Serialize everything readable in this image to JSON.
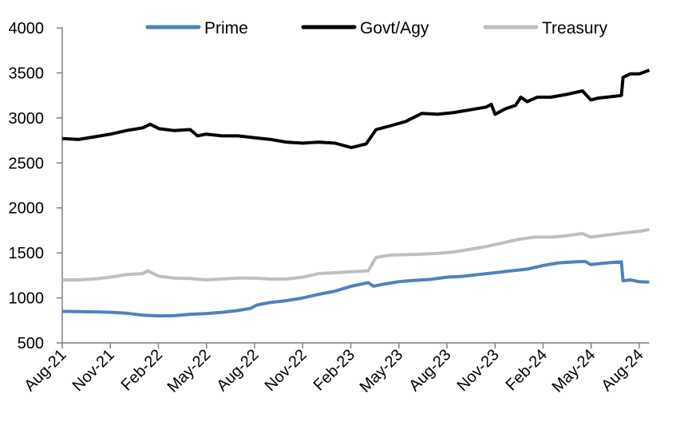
{
  "chart_data": {
    "type": "line",
    "title": "",
    "xlabel": "",
    "ylabel": "",
    "ylim": [
      500,
      4000
    ],
    "yticks": [
      "500",
      "1000",
      "1500",
      "2000",
      "2500",
      "3000",
      "3500",
      "4000"
    ],
    "xticks": [
      "Aug-21",
      "Nov-21",
      "Feb-22",
      "May-22",
      "Aug-22",
      "Nov-22",
      "Feb-23",
      "May-23",
      "Aug-23",
      "Nov-23",
      "Feb-24",
      "May-24",
      "Aug-24"
    ],
    "xlim": [
      "2021-08-01",
      "2024-08-20"
    ],
    "grid": false,
    "legend_position": "top",
    "series": [
      {
        "name": "Prime",
        "color": "#4f81bd",
        "points": [
          [
            "2021-08-01",
            850
          ],
          [
            "2021-09-01",
            848
          ],
          [
            "2021-10-01",
            845
          ],
          [
            "2021-11-01",
            840
          ],
          [
            "2021-12-01",
            830
          ],
          [
            "2022-01-01",
            808
          ],
          [
            "2022-02-01",
            800
          ],
          [
            "2022-03-01",
            802
          ],
          [
            "2022-04-01",
            818
          ],
          [
            "2022-05-01",
            825
          ],
          [
            "2022-06-01",
            840
          ],
          [
            "2022-07-01",
            860
          ],
          [
            "2022-07-25",
            885
          ],
          [
            "2022-08-05",
            920
          ],
          [
            "2022-09-01",
            950
          ],
          [
            "2022-10-01",
            970
          ],
          [
            "2022-11-01",
            1000
          ],
          [
            "2022-12-01",
            1040
          ],
          [
            "2023-01-01",
            1075
          ],
          [
            "2023-02-01",
            1130
          ],
          [
            "2023-03-05",
            1170
          ],
          [
            "2023-03-15",
            1130
          ],
          [
            "2023-04-01",
            1150
          ],
          [
            "2023-05-01",
            1180
          ],
          [
            "2023-06-01",
            1195
          ],
          [
            "2023-07-01",
            1205
          ],
          [
            "2023-08-01",
            1230
          ],
          [
            "2023-09-01",
            1240
          ],
          [
            "2023-10-01",
            1260
          ],
          [
            "2023-11-01",
            1280
          ],
          [
            "2023-12-01",
            1300
          ],
          [
            "2024-01-01",
            1320
          ],
          [
            "2024-02-01",
            1360
          ],
          [
            "2024-03-01",
            1390
          ],
          [
            "2024-04-01",
            1400
          ],
          [
            "2024-04-20",
            1405
          ],
          [
            "2024-05-01",
            1370
          ],
          [
            "2024-06-01",
            1390
          ],
          [
            "2024-06-28",
            1400
          ],
          [
            "2024-07-01",
            1190
          ],
          [
            "2024-07-15",
            1200
          ],
          [
            "2024-08-01",
            1180
          ],
          [
            "2024-08-20",
            1175
          ]
        ]
      },
      {
        "name": "Govt/Agy",
        "color": "#000000",
        "points": [
          [
            "2021-08-01",
            2770
          ],
          [
            "2021-09-01",
            2760
          ],
          [
            "2021-10-01",
            2790
          ],
          [
            "2021-11-01",
            2820
          ],
          [
            "2021-12-01",
            2860
          ],
          [
            "2022-01-01",
            2890
          ],
          [
            "2022-01-15",
            2930
          ],
          [
            "2022-02-01",
            2880
          ],
          [
            "2022-03-01",
            2860
          ],
          [
            "2022-04-01",
            2870
          ],
          [
            "2022-04-15",
            2800
          ],
          [
            "2022-05-01",
            2820
          ],
          [
            "2022-06-01",
            2800
          ],
          [
            "2022-07-01",
            2800
          ],
          [
            "2022-08-01",
            2780
          ],
          [
            "2022-09-01",
            2760
          ],
          [
            "2022-10-01",
            2730
          ],
          [
            "2022-11-01",
            2720
          ],
          [
            "2022-12-01",
            2730
          ],
          [
            "2023-01-01",
            2720
          ],
          [
            "2023-02-01",
            2670
          ],
          [
            "2023-03-01",
            2710
          ],
          [
            "2023-03-20",
            2870
          ],
          [
            "2023-04-15",
            2910
          ],
          [
            "2023-05-15",
            2960
          ],
          [
            "2023-06-15",
            3050
          ],
          [
            "2023-07-15",
            3040
          ],
          [
            "2023-08-15",
            3060
          ],
          [
            "2023-09-15",
            3090
          ],
          [
            "2023-10-15",
            3120
          ],
          [
            "2023-10-25",
            3150
          ],
          [
            "2023-11-01",
            3040
          ],
          [
            "2023-11-20",
            3100
          ],
          [
            "2023-12-10",
            3140
          ],
          [
            "2023-12-20",
            3230
          ],
          [
            "2024-01-01",
            3180
          ],
          [
            "2024-01-20",
            3230
          ],
          [
            "2024-02-15",
            3230
          ],
          [
            "2024-03-15",
            3260
          ],
          [
            "2024-04-15",
            3300
          ],
          [
            "2024-05-01",
            3200
          ],
          [
            "2024-05-15",
            3220
          ],
          [
            "2024-06-15",
            3240
          ],
          [
            "2024-06-28",
            3250
          ],
          [
            "2024-07-01",
            3450
          ],
          [
            "2024-07-15",
            3490
          ],
          [
            "2024-08-01",
            3490
          ],
          [
            "2024-08-20",
            3530
          ]
        ]
      },
      {
        "name": "Treasury",
        "color": "#bfbfbf",
        "points": [
          [
            "2021-08-01",
            1200
          ],
          [
            "2021-09-01",
            1200
          ],
          [
            "2021-10-01",
            1210
          ],
          [
            "2021-11-01",
            1230
          ],
          [
            "2021-12-01",
            1260
          ],
          [
            "2022-01-01",
            1270
          ],
          [
            "2022-01-10",
            1300
          ],
          [
            "2022-02-01",
            1240
          ],
          [
            "2022-03-01",
            1220
          ],
          [
            "2022-04-01",
            1215
          ],
          [
            "2022-05-01",
            1200
          ],
          [
            "2022-06-01",
            1210
          ],
          [
            "2022-07-01",
            1220
          ],
          [
            "2022-08-01",
            1220
          ],
          [
            "2022-09-01",
            1210
          ],
          [
            "2022-10-01",
            1210
          ],
          [
            "2022-11-01",
            1230
          ],
          [
            "2022-12-01",
            1270
          ],
          [
            "2023-01-01",
            1280
          ],
          [
            "2023-02-01",
            1290
          ],
          [
            "2023-03-05",
            1300
          ],
          [
            "2023-03-20",
            1450
          ],
          [
            "2023-04-15",
            1475
          ],
          [
            "2023-05-15",
            1480
          ],
          [
            "2023-06-15",
            1485
          ],
          [
            "2023-07-15",
            1495
          ],
          [
            "2023-08-15",
            1510
          ],
          [
            "2023-09-15",
            1540
          ],
          [
            "2023-10-15",
            1570
          ],
          [
            "2023-11-15",
            1610
          ],
          [
            "2023-12-15",
            1650
          ],
          [
            "2024-01-15",
            1675
          ],
          [
            "2024-02-15",
            1675
          ],
          [
            "2024-03-15",
            1690
          ],
          [
            "2024-04-15",
            1715
          ],
          [
            "2024-05-01",
            1675
          ],
          [
            "2024-06-01",
            1700
          ],
          [
            "2024-07-01",
            1720
          ],
          [
            "2024-08-01",
            1740
          ],
          [
            "2024-08-20",
            1760
          ]
        ]
      }
    ]
  }
}
